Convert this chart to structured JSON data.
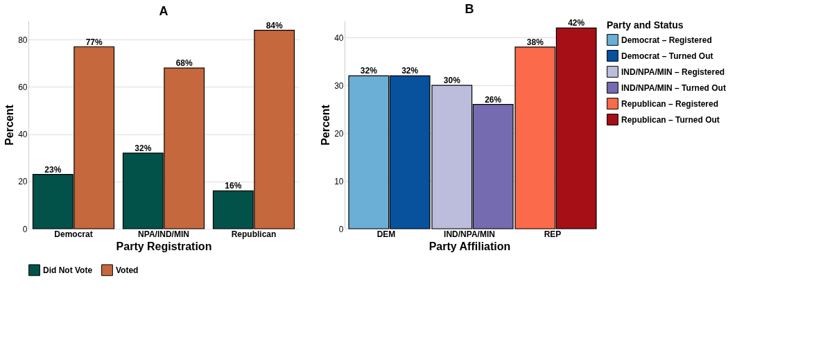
{
  "chart_data": [
    {
      "type": "bar",
      "title": "A",
      "xlabel": "Party Registration",
      "ylabel": "Percent",
      "categories": [
        "Democrat",
        "NPA/IND/MIN",
        "Republican"
      ],
      "ylim": [
        0,
        88
      ],
      "yticks": [
        0,
        20,
        40,
        60,
        80
      ],
      "grid": "y",
      "legend": "bottom",
      "series": [
        {
          "name": "Did Not Vote",
          "color": "#02524a",
          "values": [
            23,
            32,
            16
          ],
          "value_labels": [
            "23%",
            "32%",
            "16%"
          ]
        },
        {
          "name": "Voted",
          "color": "#c5683d",
          "values": [
            77,
            68,
            84
          ],
          "value_labels": [
            "77%",
            "68%",
            "84%"
          ]
        }
      ]
    },
    {
      "type": "bar",
      "title": "B",
      "xlabel": "Party Affiliation",
      "ylabel": "Percent",
      "legend_title": "Party and Status",
      "categories": [
        "DEM",
        "IND/NPA/MIN",
        "REP"
      ],
      "ylim": [
        0,
        43.5
      ],
      "yticks": [
        0,
        10,
        20,
        30,
        40
      ],
      "grid": "y",
      "legend": "right",
      "series": [
        {
          "name": "Democrat – Registered",
          "color": "#6baed6",
          "values": [
            32,
            null,
            null
          ],
          "value_labels": [
            "32%",
            null,
            null
          ]
        },
        {
          "name": "Democrat – Turned Out",
          "color": "#08519c",
          "values": [
            32,
            null,
            null
          ],
          "value_labels": [
            "32%",
            null,
            null
          ]
        },
        {
          "name": "IND/NPA/MIN – Registered",
          "color": "#bcbddc",
          "values": [
            null,
            30,
            null
          ],
          "value_labels": [
            null,
            "30%",
            null
          ]
        },
        {
          "name": "IND/NPA/MIN – Turned Out",
          "color": "#756bb1",
          "values": [
            null,
            26,
            null
          ],
          "value_labels": [
            null,
            "26%",
            null
          ]
        },
        {
          "name": "Republican – Registered",
          "color": "#fb6a4a",
          "values": [
            null,
            null,
            38
          ],
          "value_labels": [
            null,
            null,
            "38%"
          ]
        },
        {
          "name": "Republican – Turned Out",
          "color": "#a50f15",
          "values": [
            null,
            null,
            42
          ],
          "value_labels": [
            null,
            null,
            "42%"
          ]
        }
      ]
    }
  ]
}
